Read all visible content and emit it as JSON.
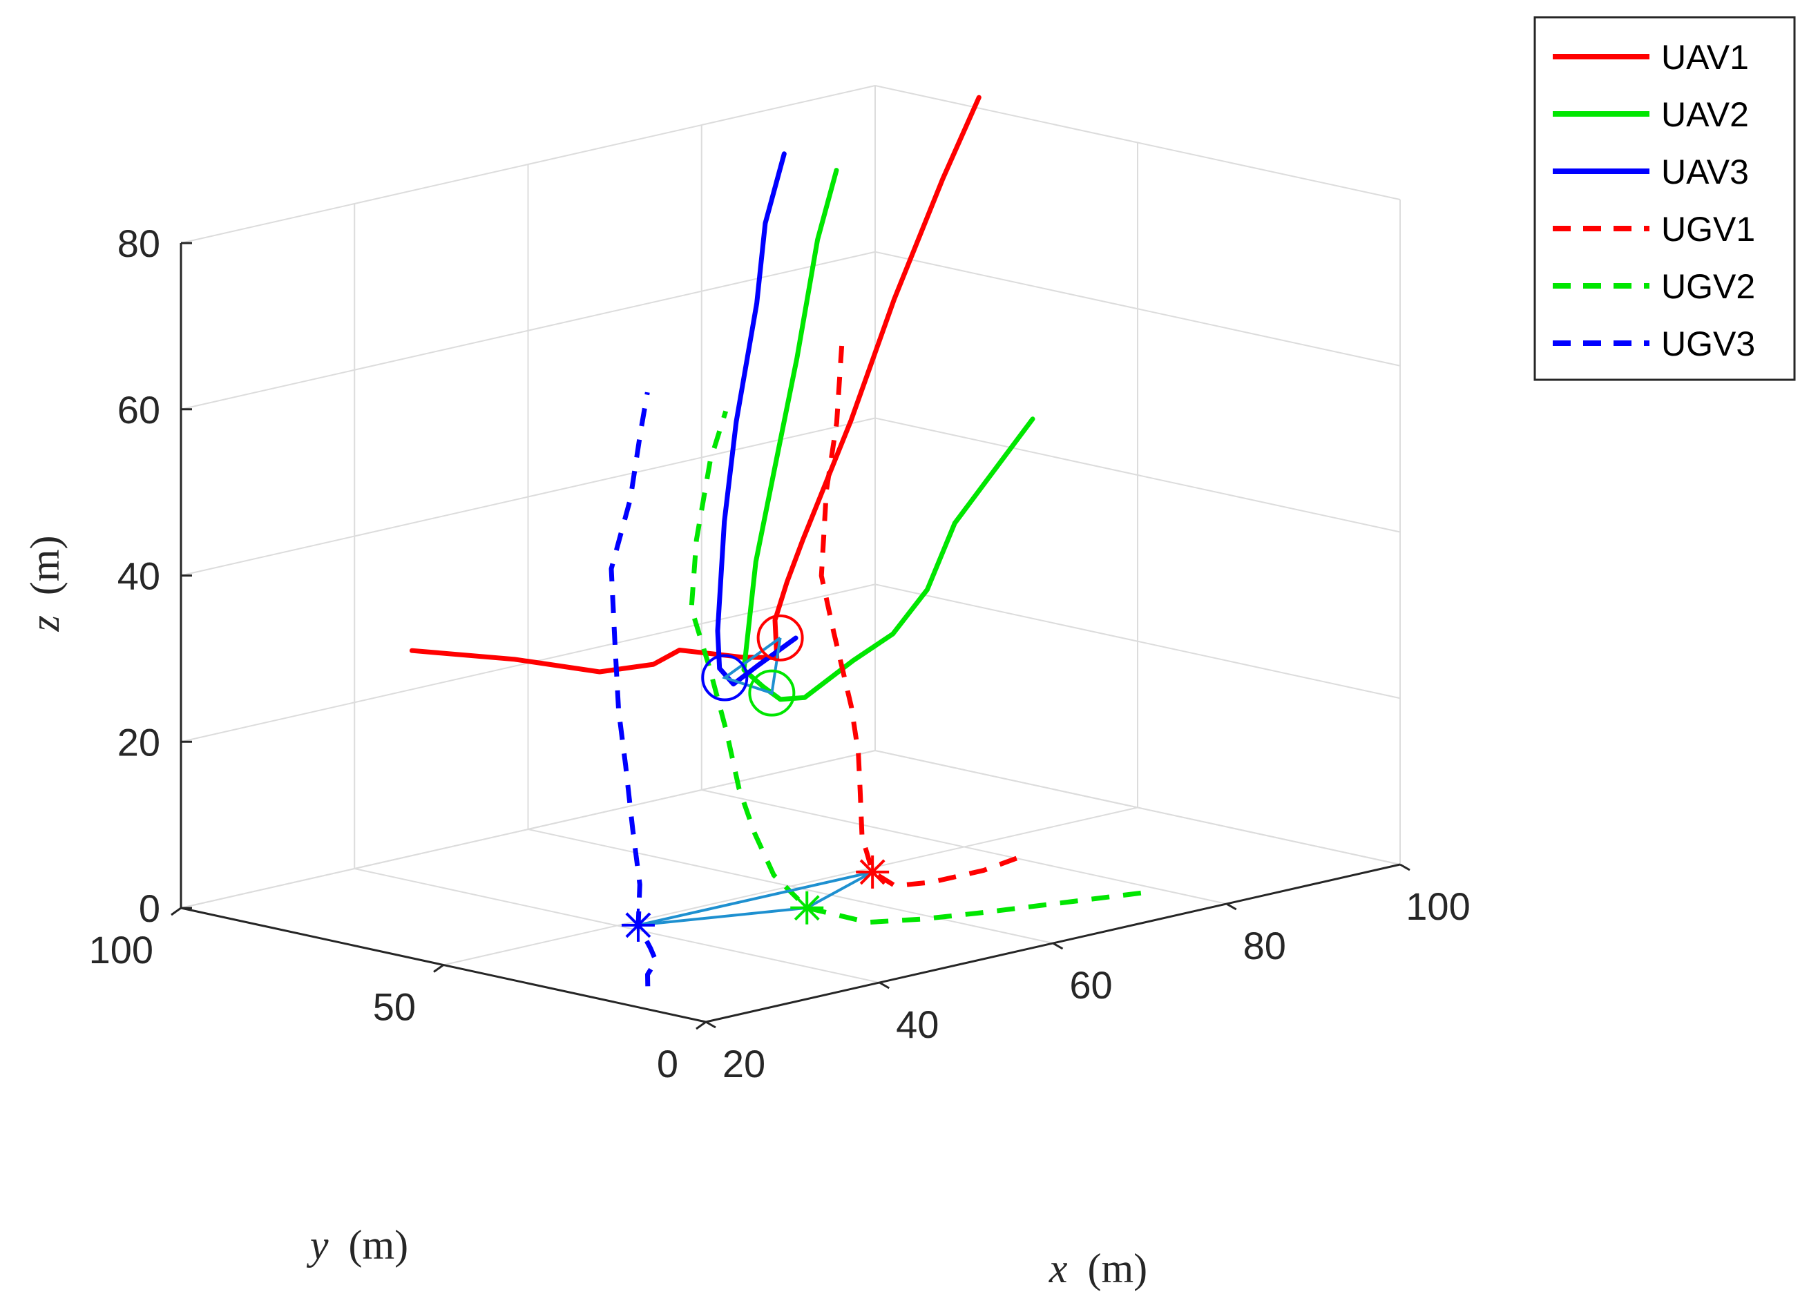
{
  "chart_data": {
    "type": "line3d",
    "title": "",
    "xlabel": {
      "var": "x",
      "unit": "(m)"
    },
    "ylabel": {
      "var": "y",
      "unit": "(m)"
    },
    "zlabel": {
      "var": "z",
      "unit": "(m)"
    },
    "xlim": [
      20,
      100
    ],
    "ylim": [
      0,
      100
    ],
    "zlim": [
      0,
      80
    ],
    "xticks": [
      20,
      40,
      60,
      80,
      100
    ],
    "yticks": [
      0,
      50,
      100
    ],
    "zticks": [
      0,
      20,
      40,
      60,
      80
    ],
    "grid": true,
    "legend_position": "top-right outside",
    "colors": {
      "red": "#ff0000",
      "green": "#00e600",
      "blue": "#0000ff",
      "link": "#1e90d0"
    },
    "series": [
      {
        "name": "UAV1",
        "style": "solid",
        "color": "red",
        "points": [
          [
            20,
            56,
            37
          ],
          [
            30,
            53,
            34
          ],
          [
            38,
            50,
            31
          ],
          [
            43,
            48,
            31
          ],
          [
            46,
            48,
            32
          ],
          [
            49,
            47,
            31
          ],
          [
            52,
            46,
            30
          ],
          [
            56,
            46,
            29
          ],
          [
            57,
            48,
            33
          ],
          [
            59,
            49,
            37
          ],
          [
            62,
            51,
            41
          ],
          [
            70,
            55,
            53
          ],
          [
            78,
            60,
            65
          ],
          [
            86,
            64,
            77
          ],
          [
            92,
            67,
            85
          ]
        ]
      },
      {
        "name": "UAV2",
        "style": "solid",
        "color": "green",
        "points": [
          [
            100,
            70,
            44
          ],
          [
            88,
            65,
            35
          ],
          [
            80,
            57,
            30
          ],
          [
            73,
            52,
            27
          ],
          [
            66,
            48,
            26
          ],
          [
            58,
            44,
            24
          ],
          [
            54,
            42,
            25
          ],
          [
            52,
            42,
            27
          ],
          [
            51,
            44,
            29
          ],
          [
            56,
            50,
            40
          ],
          [
            62,
            56,
            50
          ],
          [
            68,
            62,
            60
          ],
          [
            74,
            68,
            72
          ],
          [
            78,
            71,
            79
          ]
        ]
      },
      {
        "name": "UAV3",
        "style": "solid",
        "color": "blue",
        "points": [
          [
            60,
            49,
            30
          ],
          [
            55,
            48,
            28
          ],
          [
            51,
            46,
            27
          ],
          [
            50,
            47,
            29
          ],
          [
            51,
            49,
            33
          ],
          [
            56,
            56,
            44
          ],
          [
            61,
            62,
            54
          ],
          [
            67,
            68,
            66
          ],
          [
            71,
            73,
            74
          ],
          [
            75,
            76,
            81
          ]
        ]
      },
      {
        "name": "UGV1",
        "style": "dashed",
        "color": "red",
        "points": [
          [
            80,
            40,
            0
          ],
          [
            75,
            38,
            0
          ],
          [
            69,
            38,
            0
          ],
          [
            66,
            40,
            0
          ],
          [
            64,
            41,
            2
          ],
          [
            64,
            43,
            6
          ],
          [
            65,
            45,
            11
          ],
          [
            66,
            47,
            15
          ],
          [
            67,
            50,
            20
          ],
          [
            68,
            55,
            28
          ],
          [
            69,
            59,
            34
          ],
          [
            72,
            63,
            43
          ],
          [
            75,
            66,
            50
          ],
          [
            78,
            70,
            58
          ]
        ]
      },
      {
        "name": "UGV2",
        "style": "dashed",
        "color": "green",
        "points": [
          [
            78,
            13,
            0
          ],
          [
            70,
            17,
            0
          ],
          [
            64,
            20,
            0
          ],
          [
            59,
            23,
            0
          ],
          [
            55,
            27,
            0
          ],
          [
            51,
            32,
            2
          ],
          [
            49,
            35,
            6
          ],
          [
            48,
            37,
            11
          ],
          [
            48,
            40,
            16
          ],
          [
            49,
            44,
            22
          ],
          [
            50,
            49,
            29
          ],
          [
            51,
            54,
            35
          ],
          [
            54,
            58,
            42
          ],
          [
            58,
            62,
            50
          ],
          [
            61,
            64,
            55
          ]
        ]
      },
      {
        "name": "UGV3",
        "style": "dashed",
        "color": "blue",
        "points": [
          [
            26,
            21,
            0
          ],
          [
            29,
            26,
            0
          ],
          [
            33,
            31,
            0
          ],
          [
            36,
            37,
            0
          ],
          [
            37,
            41,
            2
          ],
          [
            39,
            44,
            6
          ],
          [
            40,
            47,
            12
          ],
          [
            41,
            50,
            19
          ],
          [
            42,
            53,
            25
          ],
          [
            44,
            57,
            32
          ],
          [
            46,
            61,
            40
          ],
          [
            50,
            64,
            47
          ],
          [
            53,
            67,
            54
          ],
          [
            55,
            69,
            58
          ]
        ]
      }
    ],
    "markers": [
      {
        "name": "UAV1 final",
        "shape": "circle",
        "color": "red",
        "point": [
          57,
          47,
          31
        ]
      },
      {
        "name": "UAV2 final",
        "shape": "circle",
        "color": "green",
        "point": [
          53,
          42,
          26
        ]
      },
      {
        "name": "UAV3 final",
        "shape": "circle",
        "color": "blue",
        "point": [
          50,
          46,
          28
        ]
      },
      {
        "name": "UGV1 final",
        "shape": "star",
        "color": "red",
        "point": [
          64,
          41,
          2
        ]
      },
      {
        "name": "UGV2 final",
        "shape": "star",
        "color": "green",
        "point": [
          51,
          32,
          2
        ]
      },
      {
        "name": "UGV3 final",
        "shape": "star",
        "color": "blue",
        "point": [
          37,
          41,
          2
        ]
      }
    ],
    "formation_links": [
      {
        "name": "UAV formation",
        "color": "link",
        "points": [
          [
            57,
            47,
            31
          ],
          [
            53,
            42,
            26
          ],
          [
            50,
            46,
            28
          ],
          [
            57,
            47,
            31
          ]
        ]
      },
      {
        "name": "UGV formation",
        "color": "link",
        "points": [
          [
            64,
            41,
            2
          ],
          [
            51,
            32,
            2
          ],
          [
            37,
            41,
            2
          ],
          [
            64,
            41,
            2
          ]
        ]
      }
    ]
  }
}
